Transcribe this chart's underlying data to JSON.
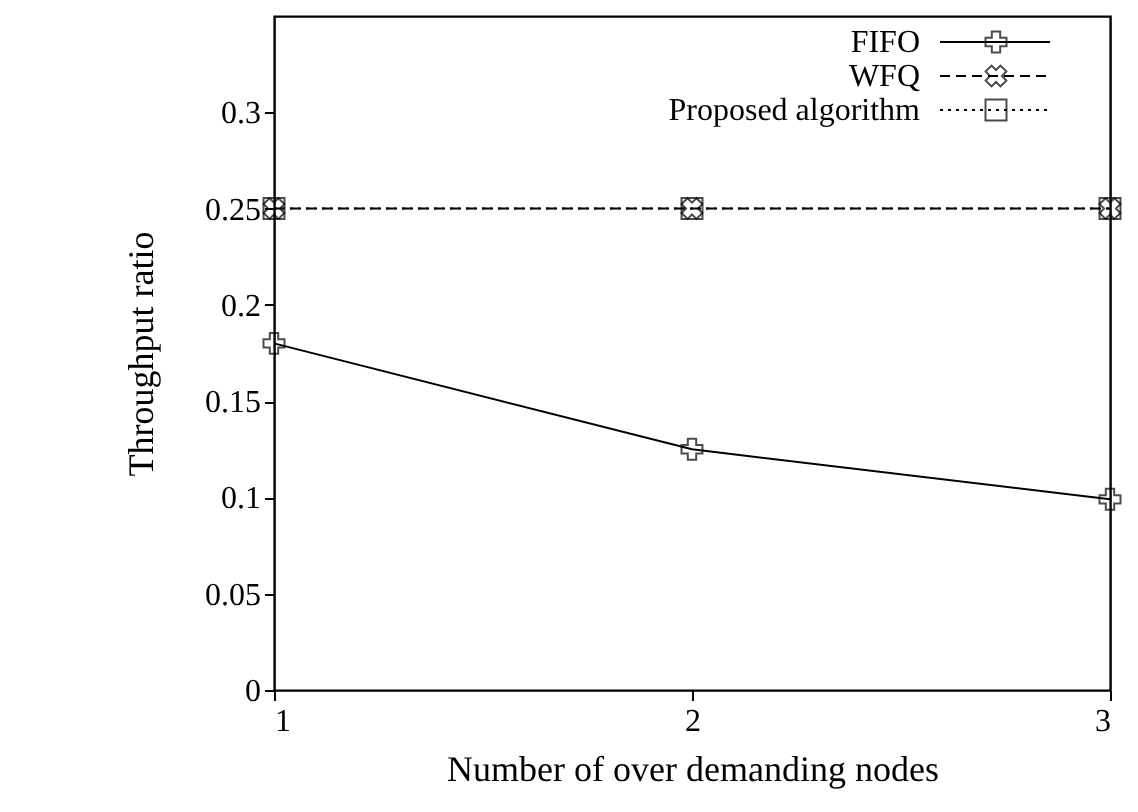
{
  "chart_data": {
    "type": "line",
    "xlabel": "Number of over demanding nodes",
    "ylabel": "Throughput ratio",
    "x": [
      1,
      2,
      3
    ],
    "xlim": [
      1,
      3
    ],
    "xticks": [
      1,
      2,
      3
    ],
    "ylim": [
      0,
      0.35
    ],
    "yticks": [
      0,
      0.05,
      0.1,
      0.15,
      0.2,
      0.25,
      0.3
    ],
    "grid": false,
    "legend": "top right",
    "series": [
      {
        "name": "FIFO",
        "color": "#000000",
        "values": [
          0.18,
          0.125,
          0.099
        ],
        "marker": "plus",
        "line_style": "solid"
      },
      {
        "name": "WFQ",
        "color": "#000000",
        "values": [
          0.25,
          0.25,
          0.25
        ],
        "marker": "cross",
        "line_style": "dashed"
      },
      {
        "name": "Proposed algorithm",
        "color": "#000000",
        "values": [
          0.25,
          0.25,
          0.25
        ],
        "marker": "square",
        "line_style": "dotted"
      }
    ]
  }
}
